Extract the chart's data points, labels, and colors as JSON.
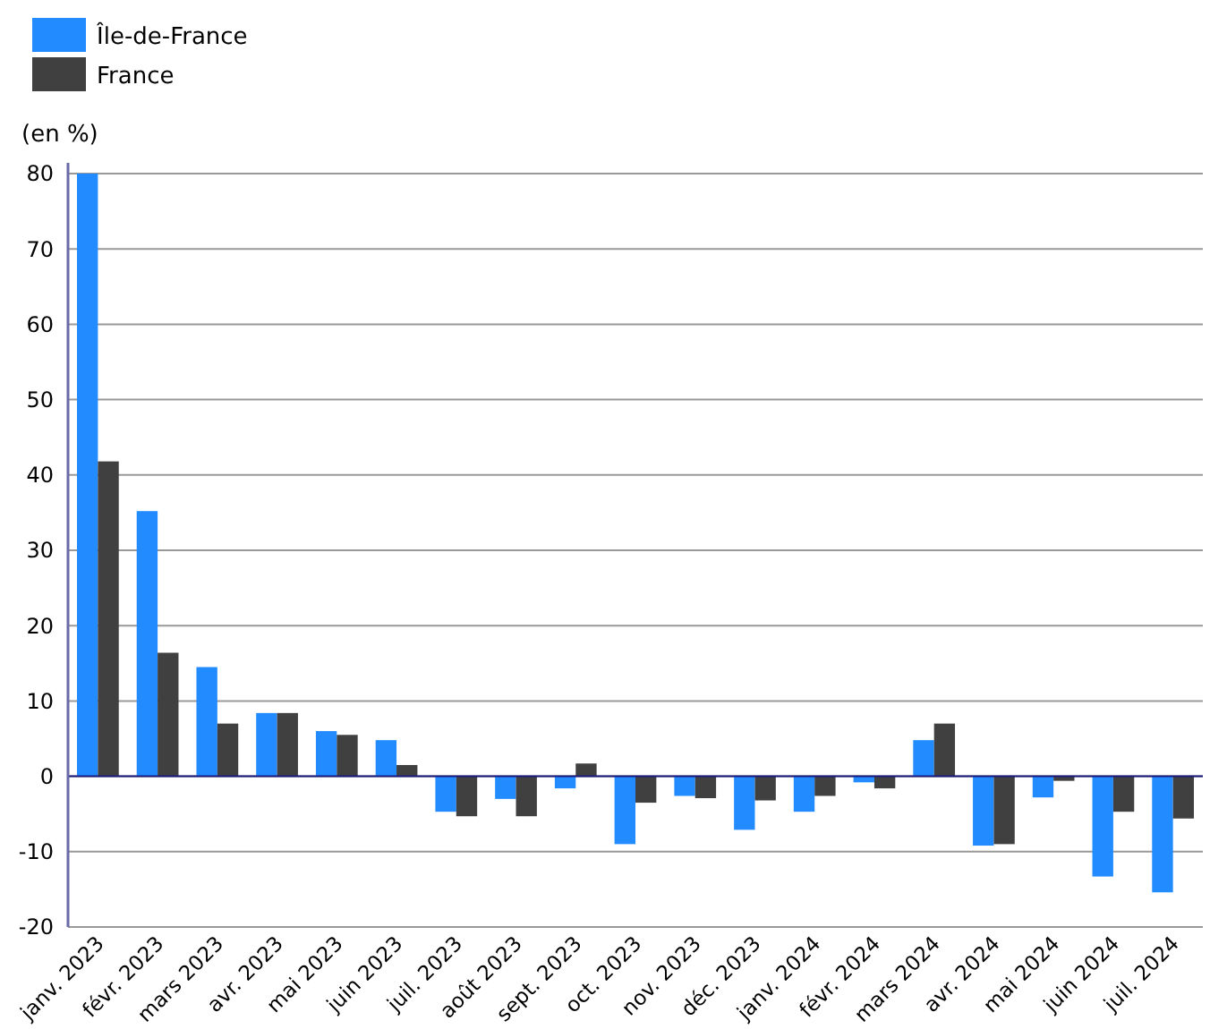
{
  "chart_data": {
    "type": "bar",
    "ylabel": "(en %)",
    "categories": [
      "janv. 2023",
      "févr. 2023",
      "mars 2023",
      "avr. 2023",
      "mai 2023",
      "juin 2023",
      "juil. 2023",
      "août 2023",
      "sept. 2023",
      "oct. 2023",
      "nov. 2023",
      "déc. 2023",
      "janv. 2024",
      "févr. 2024",
      "mars 2024",
      "avr. 2024",
      "mai 2024",
      "juin 2024",
      "juil. 2024"
    ],
    "series": [
      {
        "name": "Île-de-France",
        "color": "#228bff",
        "values": [
          80,
          35.2,
          14.5,
          8.4,
          6,
          4.8,
          -4.7,
          -3,
          -1.6,
          -9,
          -2.6,
          -7.1,
          -4.7,
          -0.8,
          4.8,
          -9.2,
          -2.8,
          -13.3,
          -15.4
        ]
      },
      {
        "name": "France",
        "color": "#404040",
        "values": [
          41.8,
          16.4,
          7,
          8.4,
          5.5,
          1.5,
          -5.3,
          -5.3,
          1.7,
          -3.5,
          -2.9,
          -3.2,
          -2.6,
          -1.6,
          7,
          -9,
          -0.6,
          -4.7,
          -5.6
        ]
      }
    ],
    "ylim": [
      -20,
      80
    ],
    "yticks": [
      -20,
      -10,
      0,
      10,
      20,
      30,
      40,
      50,
      60,
      70,
      80
    ],
    "grid": "y",
    "legend": "top left",
    "ref_lines": [
      {
        "axis": "y",
        "value": 0,
        "color": "#1a1a80"
      }
    ]
  }
}
